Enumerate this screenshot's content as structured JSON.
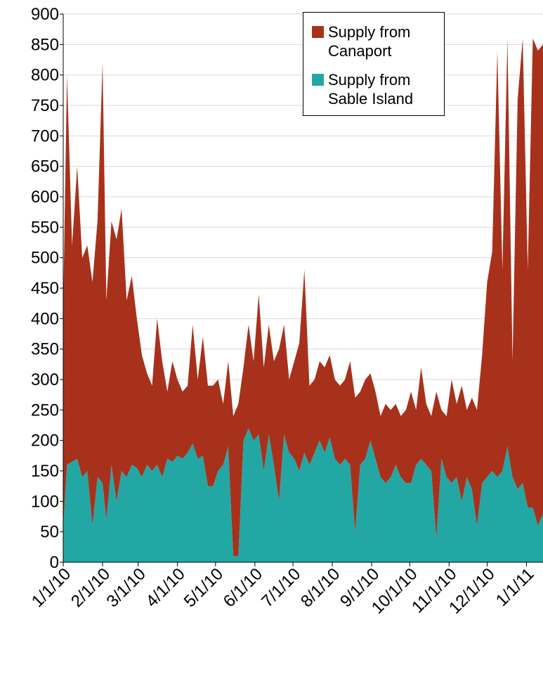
{
  "chart_data": {
    "type": "stacked-area",
    "x": [
      "1/1/10",
      "1/4/10",
      "1/8/10",
      "1/12/10",
      "1/16/10",
      "1/20/10",
      "1/24/10",
      "1/28/10",
      "2/1/10",
      "2/4/10",
      "2/8/10",
      "2/12/10",
      "2/16/10",
      "2/20/10",
      "2/24/10",
      "2/28/10",
      "3/4/10",
      "3/8/10",
      "3/12/10",
      "3/16/10",
      "3/20/10",
      "3/24/10",
      "3/28/10",
      "4/1/10",
      "4/5/10",
      "4/9/10",
      "4/13/10",
      "4/17/10",
      "4/21/10",
      "4/25/10",
      "4/29/10",
      "5/3/10",
      "5/7/10",
      "5/11/10",
      "5/15/10",
      "5/19/10",
      "5/23/10",
      "5/27/10",
      "5/31/10",
      "6/4/10",
      "6/8/10",
      "6/12/10",
      "6/16/10",
      "6/20/10",
      "6/24/10",
      "6/28/10",
      "7/2/10",
      "7/6/10",
      "7/10/10",
      "7/14/10",
      "7/18/10",
      "7/22/10",
      "7/26/10",
      "7/30/10",
      "8/3/10",
      "8/7/10",
      "8/11/10",
      "8/15/10",
      "8/19/10",
      "8/23/10",
      "8/27/10",
      "8/31/10",
      "9/4/10",
      "9/8/10",
      "9/12/10",
      "9/16/10",
      "9/20/10",
      "9/24/10",
      "9/28/10",
      "10/2/10",
      "10/6/10",
      "10/10/10",
      "10/14/10",
      "10/18/10",
      "10/22/10",
      "10/26/10",
      "10/30/10",
      "11/3/10",
      "11/7/10",
      "11/11/10",
      "11/15/10",
      "11/19/10",
      "11/23/10",
      "11/27/10",
      "12/1/10",
      "12/5/10",
      "12/9/10",
      "12/13/10",
      "12/17/10",
      "12/21/10",
      "12/25/10",
      "12/29/10",
      "1/2/11",
      "1/6/11",
      "1/10/11",
      "1/14/11"
    ],
    "series": [
      {
        "name": "Supply from Sable Island",
        "color": "#23a7a4",
        "values": [
          60,
          160,
          165,
          170,
          140,
          150,
          60,
          140,
          130,
          70,
          160,
          100,
          150,
          140,
          160,
          155,
          140,
          160,
          150,
          160,
          140,
          170,
          165,
          175,
          170,
          180,
          195,
          170,
          175,
          125,
          125,
          150,
          160,
          190,
          10,
          10,
          200,
          220,
          200,
          210,
          150,
          210,
          160,
          100,
          210,
          180,
          170,
          150,
          180,
          160,
          180,
          200,
          180,
          205,
          170,
          160,
          170,
          160,
          50,
          160,
          170,
          200,
          170,
          140,
          130,
          140,
          160,
          140,
          130,
          130,
          160,
          170,
          160,
          150,
          40,
          170,
          140,
          130,
          140,
          100,
          140,
          120,
          60,
          130,
          140,
          150,
          140,
          150,
          190,
          140,
          120,
          130,
          90,
          90,
          60,
          80
        ]
      },
      {
        "name": "Supply from Canaport",
        "color": "#a8311c",
        "values": [
          360,
          640,
          355,
          480,
          360,
          370,
          400,
          420,
          690,
          360,
          400,
          430,
          430,
          290,
          310,
          245,
          200,
          150,
          140,
          240,
          190,
          110,
          165,
          125,
          110,
          110,
          195,
          130,
          195,
          165,
          165,
          150,
          100,
          140,
          230,
          250,
          120,
          170,
          130,
          230,
          170,
          180,
          170,
          250,
          180,
          120,
          160,
          210,
          300,
          130,
          120,
          130,
          140,
          135,
          130,
          130,
          130,
          170,
          220,
          120,
          130,
          110,
          110,
          100,
          130,
          110,
          100,
          100,
          120,
          150,
          90,
          150,
          100,
          90,
          240,
          80,
          100,
          170,
          120,
          190,
          110,
          150,
          190,
          210,
          320,
          360,
          700,
          330,
          670,
          190,
          640,
          730,
          390,
          770,
          780,
          770
        ]
      }
    ],
    "xlim": [
      "1/1/10",
      "1/14/11"
    ],
    "xticks": [
      "1/1/10",
      "2/1/10",
      "3/1/10",
      "4/1/10",
      "5/1/10",
      "6/1/10",
      "7/1/10",
      "8/1/10",
      "9/1/10",
      "10/1/10",
      "11/1/10",
      "12/1/10",
      "1/1/11"
    ],
    "ylim": [
      0,
      900
    ],
    "yticks": [
      0,
      50,
      100,
      150,
      200,
      250,
      300,
      350,
      400,
      450,
      500,
      550,
      600,
      650,
      700,
      750,
      800,
      850,
      900
    ],
    "grid": true
  }
}
